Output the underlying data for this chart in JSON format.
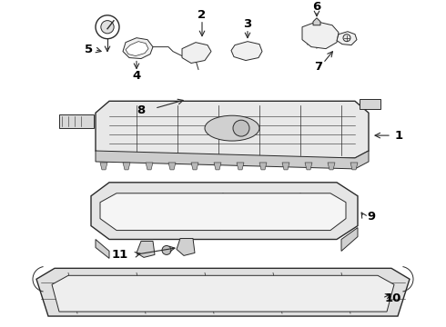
{
  "bg_color": "#ffffff",
  "line_color": "#2a2a2a",
  "label_color": "#000000",
  "label_fontsize": 8.5,
  "figsize": [
    4.9,
    3.6
  ],
  "dpi": 100
}
